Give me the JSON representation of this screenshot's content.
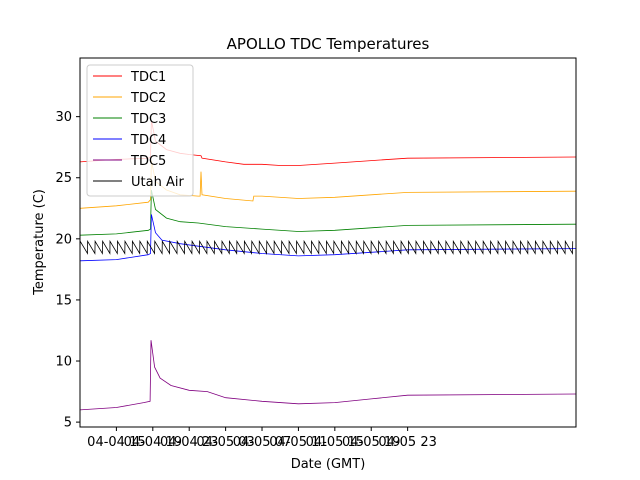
{
  "chart_data": {
    "type": "line",
    "title": "APOLLO TDC Temperatures",
    "xlabel": "Date (GMT)",
    "ylabel": "Temperature (C)",
    "xlim": [
      -4.0,
      50.5
    ],
    "ylim": [
      4.6,
      34.8
    ],
    "yticks": [
      {
        "value": 5,
        "label": "5"
      },
      {
        "value": 10,
        "label": "10"
      },
      {
        "value": 15,
        "label": "15"
      },
      {
        "value": 20,
        "label": "20"
      },
      {
        "value": 25,
        "label": "25"
      },
      {
        "value": 30,
        "label": "30"
      }
    ],
    "xticks": [
      {
        "value": 0,
        "label": "04-04 15"
      },
      {
        "value": 4,
        "label": "04-04 19"
      },
      {
        "value": 8,
        "label": "04-04 23"
      },
      {
        "value": 12,
        "label": "04-05 03"
      },
      {
        "value": 16,
        "label": "04-05 07"
      },
      {
        "value": 20,
        "label": "04-05 11"
      },
      {
        "value": 24,
        "label": "04-05 15"
      },
      {
        "value": 28,
        "label": "04-05 19"
      },
      {
        "value": 32,
        "label": "04-05 23"
      }
    ],
    "x_units": "hours since 04-04 15:00 GMT",
    "legend_position": "top-left",
    "series": [
      {
        "name": "TDC1",
        "color": "#ff0000",
        "points": [
          [
            -4,
            26.3
          ],
          [
            0,
            26.5
          ],
          [
            3.5,
            26.6
          ],
          [
            3.75,
            26.7
          ],
          [
            3.85,
            29.7
          ],
          [
            4.3,
            28.0
          ],
          [
            5.5,
            27.3
          ],
          [
            7,
            27.0
          ],
          [
            8,
            26.9
          ],
          [
            9.3,
            26.8
          ],
          [
            9.4,
            26.6
          ],
          [
            12,
            26.3
          ],
          [
            14,
            26.1
          ],
          [
            16,
            26.1
          ],
          [
            18,
            26.0
          ],
          [
            20,
            26.0
          ],
          [
            24,
            26.2
          ],
          [
            28,
            26.4
          ],
          [
            32,
            26.6
          ],
          [
            50.5,
            26.7
          ]
        ]
      },
      {
        "name": "TDC2",
        "color": "#ffa500",
        "points": [
          [
            -4,
            22.5
          ],
          [
            0,
            22.7
          ],
          [
            3.5,
            23.0
          ],
          [
            3.75,
            23.2
          ],
          [
            3.85,
            26.4
          ],
          [
            4.3,
            24.7
          ],
          [
            5.5,
            24.0
          ],
          [
            7,
            23.6
          ],
          [
            9,
            23.5
          ],
          [
            9.2,
            23.5
          ],
          [
            9.3,
            25.5
          ],
          [
            9.4,
            23.6
          ],
          [
            12,
            23.3
          ],
          [
            15,
            23.1
          ],
          [
            15.1,
            23.5
          ],
          [
            16,
            23.5
          ],
          [
            20,
            23.3
          ],
          [
            24,
            23.4
          ],
          [
            28,
            23.6
          ],
          [
            32,
            23.8
          ],
          [
            50.5,
            23.9
          ]
        ]
      },
      {
        "name": "TDC3",
        "color": "#008000",
        "points": [
          [
            -4,
            20.3
          ],
          [
            0,
            20.4
          ],
          [
            3.5,
            20.7
          ],
          [
            3.75,
            20.8
          ],
          [
            3.85,
            24.0
          ],
          [
            4.3,
            22.4
          ],
          [
            5.5,
            21.7
          ],
          [
            7,
            21.4
          ],
          [
            9,
            21.3
          ],
          [
            12,
            21.0
          ],
          [
            16,
            20.8
          ],
          [
            20,
            20.6
          ],
          [
            24,
            20.7
          ],
          [
            28,
            20.9
          ],
          [
            32,
            21.1
          ],
          [
            50.5,
            21.2
          ]
        ]
      },
      {
        "name": "TDC4",
        "color": "#0000ff",
        "points": [
          [
            -4,
            18.2
          ],
          [
            0,
            18.3
          ],
          [
            3.5,
            18.7
          ],
          [
            3.75,
            18.8
          ],
          [
            3.85,
            22.0
          ],
          [
            4.3,
            20.5
          ],
          [
            5,
            19.9
          ],
          [
            7,
            19.6
          ],
          [
            9,
            19.4
          ],
          [
            12,
            19.1
          ],
          [
            16,
            18.8
          ],
          [
            20,
            18.6
          ],
          [
            24,
            18.7
          ],
          [
            28,
            18.9
          ],
          [
            32,
            19.1
          ],
          [
            50.5,
            19.2
          ]
        ]
      },
      {
        "name": "TDC5",
        "color": "#800080",
        "points": [
          [
            -4,
            6.0
          ],
          [
            0,
            6.2
          ],
          [
            3,
            6.6
          ],
          [
            3.7,
            6.7
          ],
          [
            3.8,
            11.7
          ],
          [
            4.2,
            9.5
          ],
          [
            4.8,
            8.6
          ],
          [
            6,
            8.0
          ],
          [
            8,
            7.6
          ],
          [
            10,
            7.5
          ],
          [
            12,
            7.0
          ],
          [
            16,
            6.7
          ],
          [
            20,
            6.5
          ],
          [
            24,
            6.6
          ],
          [
            28,
            6.9
          ],
          [
            32,
            7.2
          ],
          [
            50.5,
            7.3
          ]
        ]
      },
      {
        "name": "Utah Air",
        "color": "#000000",
        "oscillation": {
          "low": 18.8,
          "high": 19.8,
          "period_hours": 0.82,
          "x_start": -4,
          "x_end": 50.5
        }
      }
    ]
  }
}
